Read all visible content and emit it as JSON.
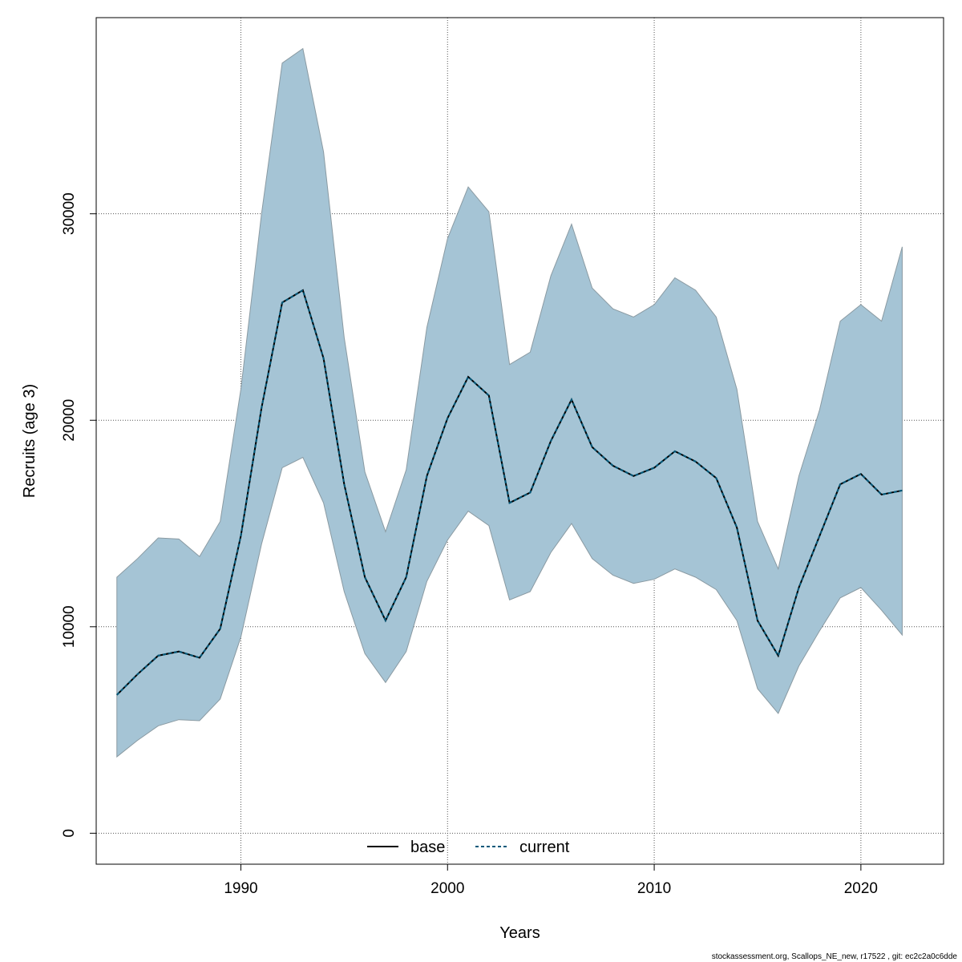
{
  "chart_data": {
    "type": "line",
    "xlabel": "Years",
    "ylabel": "Recruits (age 3)",
    "xlim": [
      1983,
      2024
    ],
    "ylim": [
      -1500,
      39500
    ],
    "x_ticks": [
      1990,
      2000,
      2010,
      2020
    ],
    "y_ticks": [
      0,
      10000,
      20000,
      30000
    ],
    "grid": true,
    "legend_position": "bottom-center",
    "x": [
      1984,
      1985,
      1986,
      1987,
      1988,
      1989,
      1990,
      1991,
      1992,
      1993,
      1994,
      1995,
      1996,
      1997,
      1998,
      1999,
      2000,
      2001,
      2002,
      2003,
      2004,
      2005,
      2006,
      2007,
      2008,
      2009,
      2010,
      2011,
      2012,
      2013,
      2014,
      2015,
      2016,
      2017,
      2018,
      2019,
      2020,
      2021,
      2022
    ],
    "confidence_band": {
      "color": "#a5c4d5",
      "upper": [
        12400,
        13300,
        14300,
        14250,
        13400,
        15100,
        21500,
        30000,
        37300,
        38000,
        33000,
        24000,
        17500,
        14600,
        17600,
        24500,
        28800,
        31300,
        30100,
        22700,
        23300,
        27000,
        29500,
        26400,
        25400,
        25000,
        25600,
        26900,
        26300,
        25000,
        21500,
        15100,
        12800,
        17300,
        20500,
        24800,
        25600,
        24800,
        28400
      ],
      "lower": [
        3700,
        4500,
        5200,
        5500,
        5450,
        6500,
        9500,
        14000,
        17700,
        18200,
        16000,
        11700,
        8700,
        7300,
        8800,
        12200,
        14200,
        15600,
        14900,
        11300,
        11700,
        13600,
        15000,
        13300,
        12500,
        12100,
        12300,
        12800,
        12400,
        11800,
        10300,
        7000,
        5800,
        8100,
        9800,
        11400,
        11900,
        10800,
        9600
      ]
    },
    "series": [
      {
        "name": "base",
        "color": "#000000",
        "style": "solid",
        "values": [
          6700,
          7700,
          8600,
          8800,
          8500,
          9900,
          14400,
          20600,
          25700,
          26300,
          23000,
          16900,
          12400,
          10300,
          12400,
          17300,
          20100,
          22100,
          21200,
          16000,
          16500,
          19000,
          21000,
          18700,
          17800,
          17300,
          17700,
          18500,
          18000,
          17200,
          14800,
          10300,
          8600,
          11900,
          14400,
          16900,
          17400,
          16400,
          16600
        ]
      },
      {
        "name": "current",
        "color": "#00597a",
        "style": "dashed",
        "values": [
          6700,
          7700,
          8600,
          8800,
          8500,
          9900,
          14400,
          20600,
          25700,
          26300,
          23000,
          16900,
          12400,
          10300,
          12400,
          17300,
          20100,
          22100,
          21200,
          16000,
          16500,
          19000,
          21000,
          18700,
          17800,
          17300,
          17700,
          18500,
          18000,
          17200,
          14800,
          10300,
          8600,
          11900,
          14400,
          16900,
          17400,
          16400,
          16600
        ]
      }
    ]
  },
  "footer": "stockassessment.org, Scallops_NE_new, r17522 , git: ec2c2a0c6dde"
}
